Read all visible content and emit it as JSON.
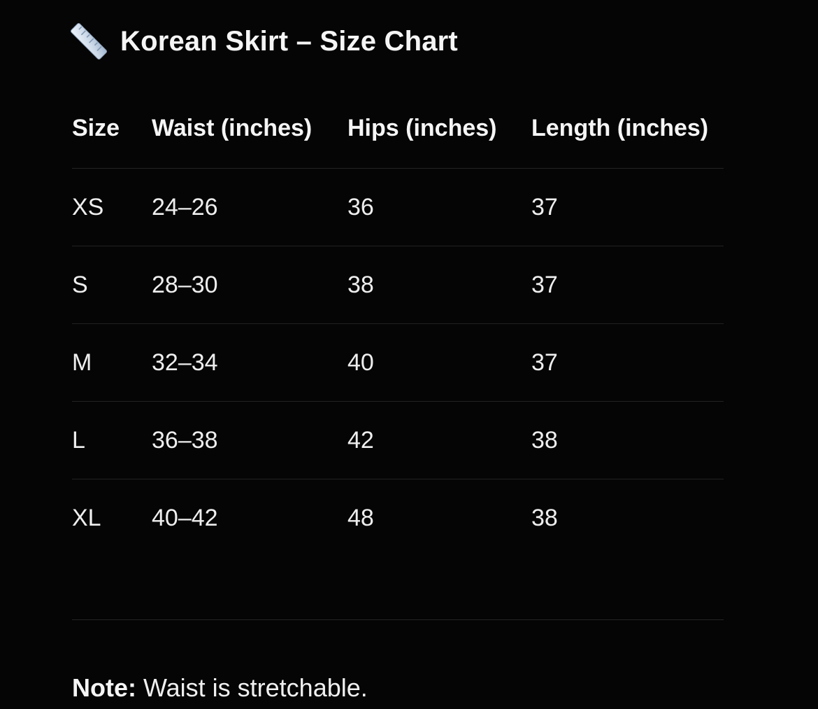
{
  "page": {
    "background_color": "#050505",
    "text_color": "#f2f2f2",
    "divider_color": "#232323"
  },
  "header": {
    "icon": "straight-ruler-icon",
    "icon_colors": {
      "body_light": "#e9f1f9",
      "body_dark": "#a9bcd3",
      "ticks": "#8098b1"
    },
    "title": "Korean Skirt – Size Chart"
  },
  "table": {
    "columns": [
      "Size",
      "Waist (inches)",
      "Hips (inches)",
      "Length (inches)"
    ],
    "rows": [
      {
        "size": "XS",
        "waist": "24–26",
        "hips": "36",
        "length": "37"
      },
      {
        "size": "S",
        "waist": "28–30",
        "hips": "38",
        "length": "37"
      },
      {
        "size": "M",
        "waist": "32–34",
        "hips": "40",
        "length": "37"
      },
      {
        "size": "L",
        "waist": "36–38",
        "hips": "42",
        "length": "38"
      },
      {
        "size": "XL",
        "waist": "40–42",
        "hips": "48",
        "length": "38"
      }
    ]
  },
  "note": {
    "label": "Note:",
    "text": " Waist is stretchable."
  }
}
